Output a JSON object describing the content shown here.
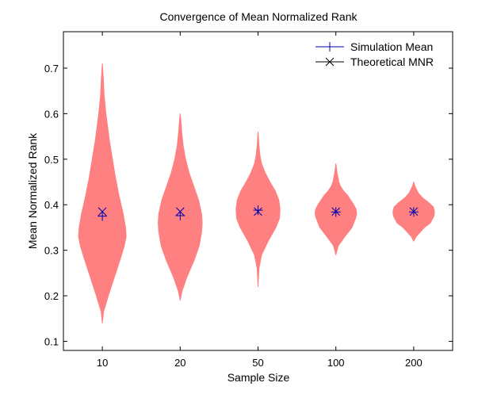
{
  "chart_data": {
    "type": "violin",
    "title": "Convergence of Mean Normalized Rank",
    "xlabel": "Sample Size",
    "ylabel": "Mean Normalized Rank",
    "categories": [
      "10",
      "20",
      "50",
      "100",
      "200"
    ],
    "ylim": [
      0.08,
      0.78
    ],
    "yticks": [
      0.1,
      0.2,
      0.3,
      0.4,
      0.5,
      0.6,
      0.7
    ],
    "ytick_labels": [
      "0.1",
      "0.2",
      "0.3",
      "0.4",
      "0.5",
      "0.6",
      "0.7"
    ],
    "grid": false,
    "legend_position": "top-right",
    "colors": {
      "violin_fill": "#ff8080",
      "simulation_mean": "#0000aa",
      "theoretical_mnr": "#000000",
      "axis": "#000000"
    },
    "series": [
      {
        "name": "Simulation Mean",
        "marker": "plus",
        "values": [
          0.375,
          0.376,
          0.388,
          0.384,
          0.384
        ]
      },
      {
        "name": "Theoretical MNR",
        "marker": "x",
        "values": [
          0.385,
          0.385,
          0.385,
          0.385,
          0.385
        ]
      }
    ],
    "violins": [
      {
        "category": "10",
        "min": 0.14,
        "max": 0.71,
        "profile": [
          [
            0.14,
            0.0
          ],
          [
            0.165,
            0.02
          ],
          [
            0.2,
            0.1
          ],
          [
            0.24,
            0.2
          ],
          [
            0.28,
            0.3
          ],
          [
            0.31,
            0.37
          ],
          [
            0.33,
            0.4
          ],
          [
            0.35,
            0.39
          ],
          [
            0.38,
            0.35
          ],
          [
            0.42,
            0.28
          ],
          [
            0.46,
            0.22
          ],
          [
            0.5,
            0.17
          ],
          [
            0.54,
            0.12
          ],
          [
            0.58,
            0.08
          ],
          [
            0.6,
            0.06
          ],
          [
            0.64,
            0.03
          ],
          [
            0.68,
            0.015
          ],
          [
            0.71,
            0.0
          ]
        ]
      },
      {
        "category": "20",
        "min": 0.19,
        "max": 0.6,
        "profile": [
          [
            0.19,
            0.0
          ],
          [
            0.21,
            0.03
          ],
          [
            0.24,
            0.11
          ],
          [
            0.28,
            0.24
          ],
          [
            0.31,
            0.32
          ],
          [
            0.34,
            0.36
          ],
          [
            0.36,
            0.37
          ],
          [
            0.38,
            0.36
          ],
          [
            0.41,
            0.31
          ],
          [
            0.44,
            0.23
          ],
          [
            0.47,
            0.15
          ],
          [
            0.5,
            0.09
          ],
          [
            0.53,
            0.05
          ],
          [
            0.56,
            0.025
          ],
          [
            0.58,
            0.015
          ],
          [
            0.6,
            0.0
          ]
        ]
      },
      {
        "category": "50",
        "min": 0.22,
        "max": 0.56,
        "profile": [
          [
            0.22,
            0.0
          ],
          [
            0.26,
            0.015
          ],
          [
            0.29,
            0.06
          ],
          [
            0.32,
            0.17
          ],
          [
            0.35,
            0.3
          ],
          [
            0.37,
            0.36
          ],
          [
            0.39,
            0.37
          ],
          [
            0.41,
            0.35
          ],
          [
            0.43,
            0.29
          ],
          [
            0.45,
            0.2
          ],
          [
            0.47,
            0.12
          ],
          [
            0.49,
            0.06
          ],
          [
            0.51,
            0.03
          ],
          [
            0.53,
            0.015
          ],
          [
            0.56,
            0.0
          ]
        ]
      },
      {
        "category": "100",
        "min": 0.29,
        "max": 0.49,
        "profile": [
          [
            0.29,
            0.0
          ],
          [
            0.31,
            0.04
          ],
          [
            0.33,
            0.15
          ],
          [
            0.35,
            0.27
          ],
          [
            0.37,
            0.33
          ],
          [
            0.38,
            0.35
          ],
          [
            0.39,
            0.34
          ],
          [
            0.4,
            0.3
          ],
          [
            0.42,
            0.2
          ],
          [
            0.43,
            0.13
          ],
          [
            0.44,
            0.08
          ],
          [
            0.45,
            0.05
          ],
          [
            0.47,
            0.02
          ],
          [
            0.49,
            0.0
          ]
        ]
      },
      {
        "category": "200",
        "min": 0.32,
        "max": 0.45,
        "profile": [
          [
            0.32,
            0.0
          ],
          [
            0.33,
            0.04
          ],
          [
            0.35,
            0.18
          ],
          [
            0.36,
            0.28
          ],
          [
            0.375,
            0.34
          ],
          [
            0.385,
            0.35
          ],
          [
            0.395,
            0.33
          ],
          [
            0.405,
            0.25
          ],
          [
            0.415,
            0.15
          ],
          [
            0.425,
            0.08
          ],
          [
            0.435,
            0.04
          ],
          [
            0.445,
            0.01
          ],
          [
            0.45,
            0.0
          ]
        ]
      }
    ]
  }
}
